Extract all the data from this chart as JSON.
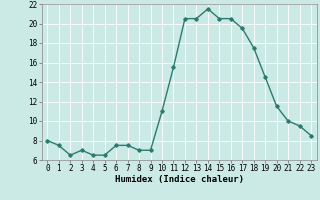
{
  "x": [
    0,
    1,
    2,
    3,
    4,
    5,
    6,
    7,
    8,
    9,
    10,
    11,
    12,
    13,
    14,
    15,
    16,
    17,
    18,
    19,
    20,
    21,
    22,
    23
  ],
  "y": [
    8.0,
    7.5,
    6.5,
    7.0,
    6.5,
    6.5,
    7.5,
    7.5,
    7.0,
    7.0,
    11.0,
    15.5,
    20.5,
    20.5,
    21.5,
    20.5,
    20.5,
    19.5,
    17.5,
    14.5,
    11.5,
    10.0,
    9.5,
    8.5
  ],
  "line_color": "#2d7a6e",
  "marker": "D",
  "marker_size": 1.8,
  "bg_color": "#cceae5",
  "grid_color": "#ffffff",
  "xlabel": "Humidex (Indice chaleur)",
  "xlabel_fontsize": 6.5,
  "ylim": [
    6,
    22
  ],
  "xlim": [
    -0.5,
    23.5
  ],
  "yticks": [
    6,
    8,
    10,
    12,
    14,
    16,
    18,
    20,
    22
  ],
  "xticks": [
    0,
    1,
    2,
    3,
    4,
    5,
    6,
    7,
    8,
    9,
    10,
    11,
    12,
    13,
    14,
    15,
    16,
    17,
    18,
    19,
    20,
    21,
    22,
    23
  ],
  "tick_fontsize": 5.5,
  "linewidth": 1.0
}
